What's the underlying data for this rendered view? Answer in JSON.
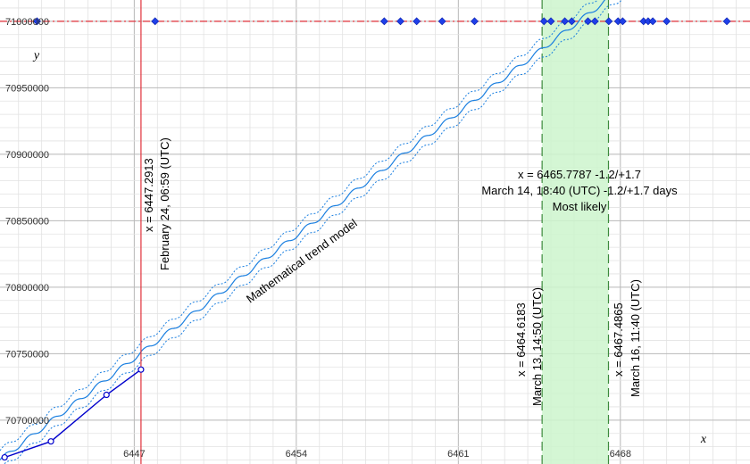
{
  "chart_data": {
    "type": "line",
    "title": "",
    "xlabel": "x",
    "ylabel": "y",
    "xlim": [
      6441.2,
      6473.6
    ],
    "ylim": [
      70667000,
      71016000
    ],
    "x_ticks": [
      6447,
      6454,
      6461,
      6468
    ],
    "y_ticks": [
      70700000,
      70750000,
      70800000,
      70850000,
      70900000,
      70950000,
      71000000
    ],
    "grid": true,
    "colors": {
      "trend": "#1a7fe0",
      "observed": "#0000cc",
      "threshold": "#e0303a",
      "marker_line": "#e0303a",
      "likely_band": "#c8f5c8",
      "band_edges": "#3c8a3c"
    },
    "threshold_value": 71000000,
    "series": [
      {
        "kind": "observed",
        "x": [
          6441.4,
          6443.4,
          6445.8,
          6447.29
        ],
        "y": [
          70672000,
          70684000,
          70719000,
          70738000
        ]
      },
      {
        "kind": "threshold-crossings",
        "x": [
          6442.8,
          6447.9,
          6457.8,
          6458.5,
          6459.2,
          6460.3,
          6461.7,
          6464.7,
          6465.0,
          6465.6,
          6465.9,
          6466.6,
          6466.9,
          6467.5,
          6467.9,
          6468.1,
          6469.0,
          6469.2,
          6469.4,
          6470.0,
          6472.6
        ],
        "y": [
          71000000,
          71000000,
          71000000,
          71000000,
          71000000,
          71000000,
          71000000,
          71000000,
          71000000,
          71000000,
          71000000,
          71000000,
          71000000,
          71000000,
          71000000,
          71000000,
          71000000,
          71000000,
          71000000,
          71000000,
          71000000
        ]
      }
    ],
    "trend": {
      "x_start": 6441.2,
      "y_start": 70670000,
      "x_end": 6468.1,
      "y_end": 71025000,
      "band": 7000
    },
    "vertical_marker": {
      "x": 6447.2913,
      "line1": "x = 6447.2913",
      "line2": "February 24, 06:59 (UTC)"
    },
    "likely_range": {
      "x": 6465.7787,
      "x_low": 6464.6183,
      "x_high": 6467.4865,
      "title_line1": "x = 6465.7787 -1.2/+1.7",
      "title_line2": "March 14, 18:40 (UTC) -1.2/+1.7 days",
      "title_line3": "Most likely",
      "low_line1": "x = 6464.6183",
      "low_line2": "March 13, 14:50 (UTC)",
      "high_line1": "x = 6467.4865",
      "high_line2": "March 16, 11:40 (UTC)"
    },
    "trend_label": "Mathematical trend model"
  }
}
